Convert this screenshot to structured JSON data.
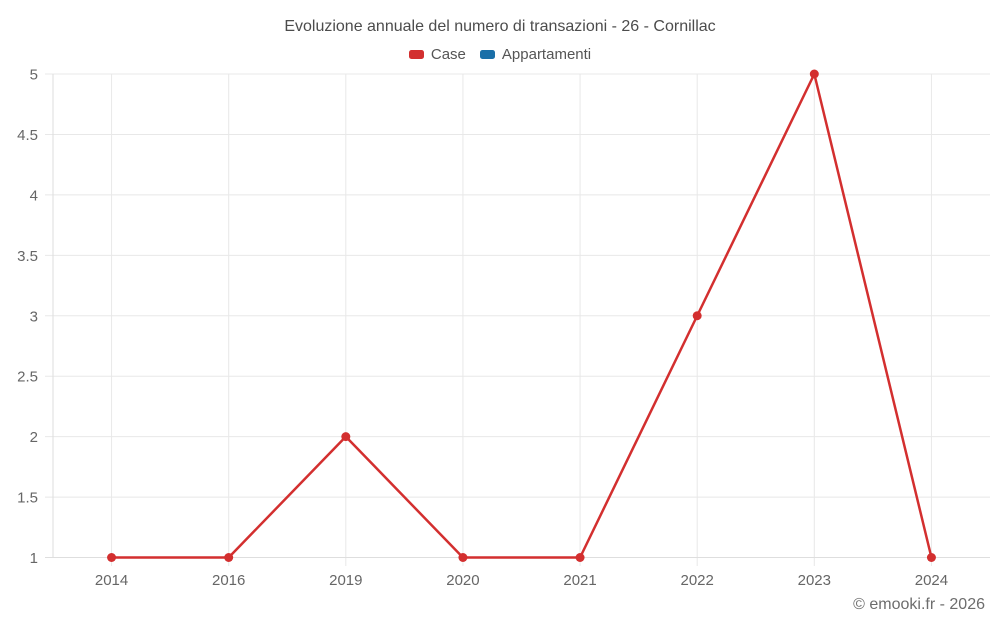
{
  "chart": {
    "title": "Evoluzione annuale del numero di transazioni - 26 - Cornillac"
  },
  "footer": {
    "copyright": "© emooki.fr - 2026"
  },
  "colors": {
    "grid": "#e8e8e8",
    "axis": "#dedede",
    "tick_text": "#666666",
    "title_text": "#4c4c4c"
  },
  "chart_data": {
    "type": "line",
    "title": "Evoluzione annuale del numero di transazioni - 26 - Cornillac",
    "xlabel": "",
    "ylabel": "",
    "categories": [
      "2014",
      "2016",
      "2019",
      "2020",
      "2021",
      "2022",
      "2023",
      "2024"
    ],
    "series": [
      {
        "name": "Case",
        "color": "#d32f2f",
        "values": [
          1,
          1,
          2,
          1,
          1,
          3,
          5,
          1
        ]
      },
      {
        "name": "Appartamenti",
        "color": "#1a6fa8",
        "values": []
      }
    ],
    "ylim": [
      1,
      5
    ],
    "yticks": [
      1,
      1.5,
      2,
      2.5,
      3,
      3.5,
      4,
      4.5,
      5
    ],
    "grid": true,
    "legend_position": "top",
    "marker": "circle"
  }
}
